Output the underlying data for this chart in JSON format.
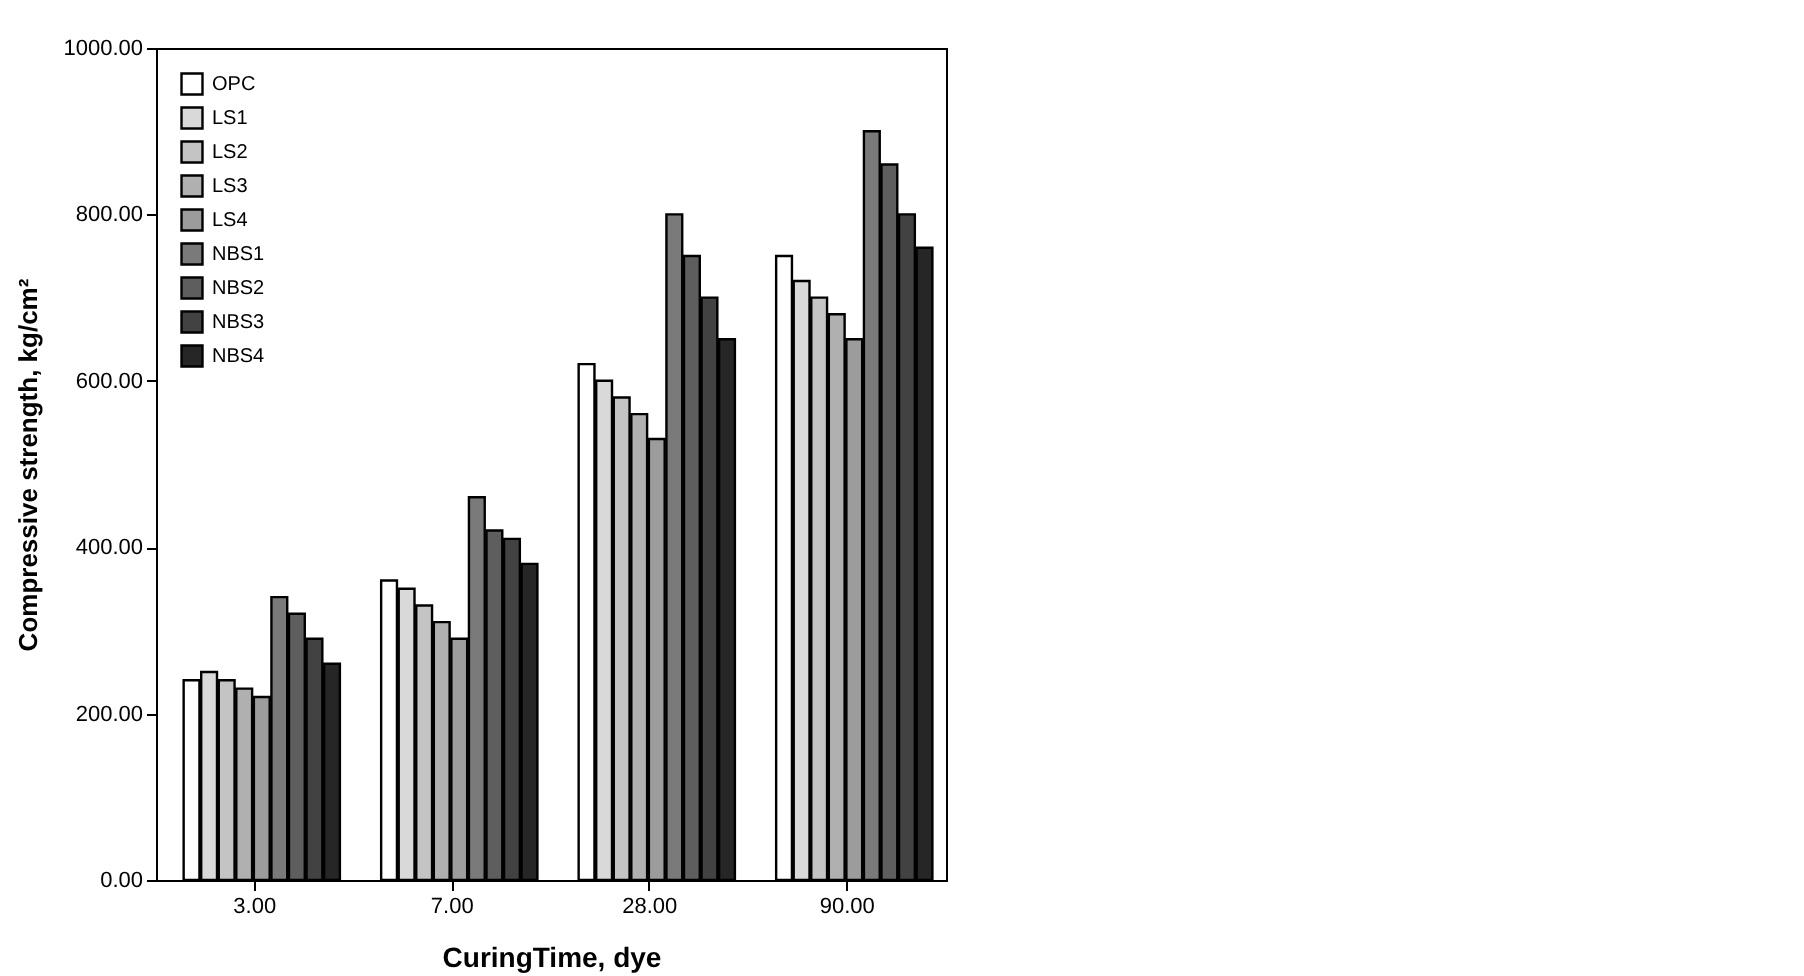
{
  "chart_data": {
    "type": "bar",
    "xlabel": "CuringTime, dye",
    "ylabel": "Compressive strength, kg/cm²",
    "categories": [
      "3.00",
      "7.00",
      "28.00",
      "90.00"
    ],
    "series": [
      {
        "name": "OPC",
        "color": "#ffffff",
        "values": [
          240,
          360,
          620,
          750
        ]
      },
      {
        "name": "LS1",
        "color": "#d9d9d9",
        "values": [
          250,
          350,
          600,
          720
        ]
      },
      {
        "name": "LS2",
        "color": "#c4c4c4",
        "values": [
          240,
          330,
          580,
          700
        ]
      },
      {
        "name": "LS3",
        "color": "#b0b0b0",
        "values": [
          230,
          310,
          560,
          680
        ]
      },
      {
        "name": "LS4",
        "color": "#9c9c9c",
        "values": [
          220,
          290,
          530,
          650
        ]
      },
      {
        "name": "NBS1",
        "color": "#7a7a7a",
        "values": [
          340,
          460,
          800,
          900
        ]
      },
      {
        "name": "NBS2",
        "color": "#5e5e5e",
        "values": [
          320,
          420,
          750,
          860
        ]
      },
      {
        "name": "NBS3",
        "color": "#424242",
        "values": [
          290,
          410,
          700,
          800
        ]
      },
      {
        "name": "NBS4",
        "color": "#262626",
        "values": [
          260,
          380,
          650,
          760
        ]
      }
    ],
    "ylim": [
      0,
      1000
    ],
    "yticks": [
      {
        "value": 0,
        "label": "0.00"
      },
      {
        "value": 200,
        "label": "200.00"
      },
      {
        "value": 400,
        "label": "400.00"
      },
      {
        "value": 600,
        "label": "600.00"
      },
      {
        "value": 800,
        "label": "800.00"
      },
      {
        "value": 1000,
        "label": "1000.00"
      }
    ],
    "grid": false,
    "legend": "top left"
  }
}
